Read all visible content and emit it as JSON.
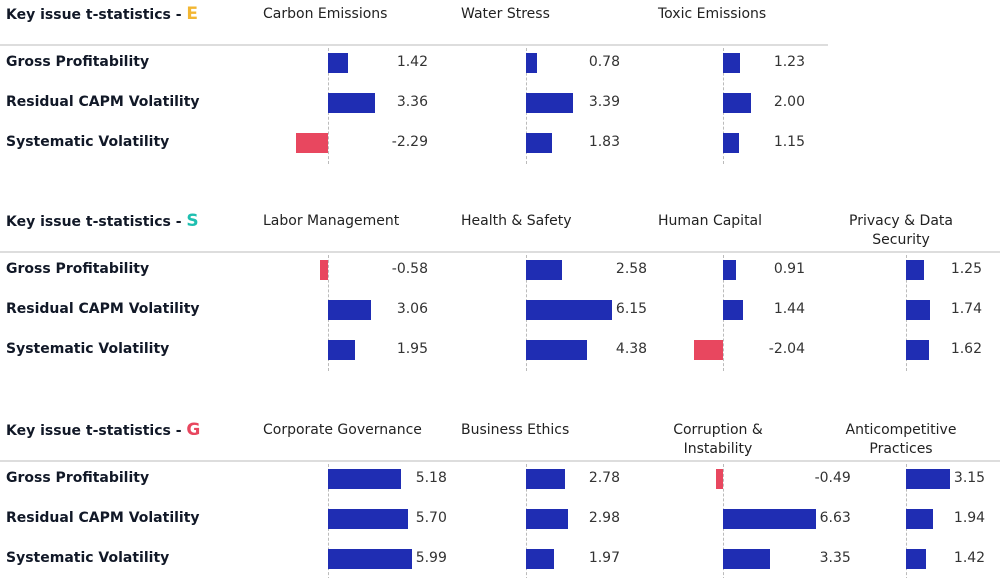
{
  "chart_data": [
    {
      "type": "bar",
      "title": "Key issue t-statistics - ",
      "title_highlight": "E",
      "title_highlight_color": "#f2b632",
      "categories": [
        "Gross Profitability",
        "Residual CAPM Volatility",
        "Systematic Volatility"
      ],
      "positive_color": "#1f2db3",
      "negative_color": "#e8475f",
      "series": [
        {
          "name": "Carbon Emissions",
          "values": [
            1.42,
            3.36,
            -2.29
          ]
        },
        {
          "name": "Water Stress",
          "values": [
            0.78,
            3.39,
            1.83
          ]
        },
        {
          "name": "Toxic Emissions",
          "values": [
            1.23,
            2.0,
            1.15
          ],
          "value_labels": [
            "1.23",
            "2.00",
            "1.15"
          ]
        }
      ]
    },
    {
      "type": "bar",
      "title": "Key issue t-statistics - ",
      "title_highlight": "S",
      "title_highlight_color": "#1fbfb0",
      "categories": [
        "Gross Profitability",
        "Residual CAPM Volatility",
        "Systematic Volatility"
      ],
      "positive_color": "#1f2db3",
      "negative_color": "#e8475f",
      "series": [
        {
          "name": "Labor Management",
          "values": [
            -0.58,
            3.06,
            1.95
          ]
        },
        {
          "name": "Health & Safety",
          "values": [
            2.58,
            6.15,
            4.38
          ]
        },
        {
          "name": "Human Capital",
          "values": [
            0.91,
            1.44,
            -2.04
          ]
        },
        {
          "name": "Privacy & Data Security",
          "values": [
            1.25,
            1.74,
            1.62
          ]
        }
      ]
    },
    {
      "type": "bar",
      "title": "Key issue t-statistics - ",
      "title_highlight": "G",
      "title_highlight_color": "#e8475f",
      "categories": [
        "Gross Profitability",
        "Residual CAPM Volatility",
        "Systematic Volatility"
      ],
      "positive_color": "#1f2db3",
      "negative_color": "#e8475f",
      "series": [
        {
          "name": "Corporate Governance",
          "values": [
            5.18,
            5.7,
            5.99
          ],
          "value_labels": [
            "5.18",
            "5.70",
            "5.99"
          ]
        },
        {
          "name": "Business Ethics",
          "values": [
            2.78,
            2.98,
            1.97
          ]
        },
        {
          "name": "Corruption & Instability",
          "values": [
            -0.49,
            6.63,
            3.35
          ]
        },
        {
          "name": "Anticompetitive Practices",
          "values": [
            3.15,
            1.94,
            1.42
          ]
        }
      ]
    }
  ]
}
